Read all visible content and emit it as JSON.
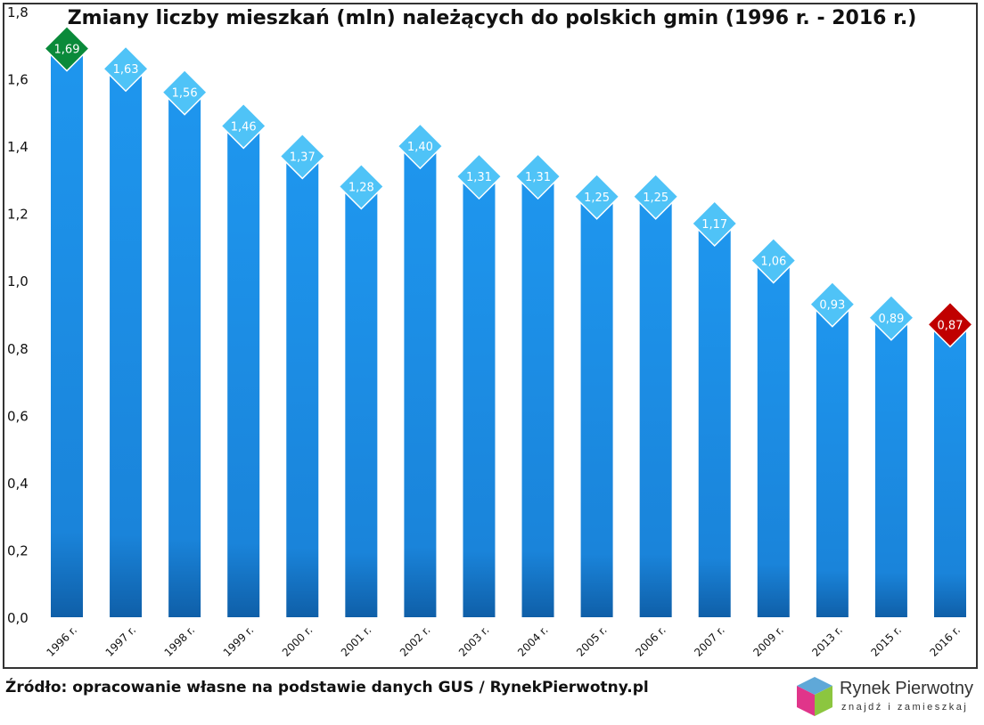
{
  "chart_data": {
    "type": "bar",
    "title": "Zmiany liczby mieszkań (mln) należących do polskich gmin (1996 r. - 2016 r.)",
    "categories": [
      "1996 r.",
      "1997 r.",
      "1998 r.",
      "1999 r.",
      "2000 r.",
      "2001 r.",
      "2002 r.",
      "2003 r.",
      "2004 r.",
      "2005 r.",
      "2006 r.",
      "2007 r.",
      "2009 r.",
      "2013 r.",
      "2015 r.",
      "2016 r."
    ],
    "values": [
      1.69,
      1.63,
      1.56,
      1.46,
      1.37,
      1.28,
      1.4,
      1.31,
      1.31,
      1.25,
      1.25,
      1.17,
      1.06,
      0.93,
      0.89,
      0.87
    ],
    "data_labels": [
      "1,69",
      "1,63",
      "1,56",
      "1,46",
      "1,37",
      "1,28",
      "1,40",
      "1,31",
      "1,31",
      "1,25",
      "1,25",
      "1,17",
      "1,06",
      "0,93",
      "0,89",
      "0,87"
    ],
    "yticks": [
      "0,0",
      "0,2",
      "0,4",
      "0,6",
      "0,8",
      "1,0",
      "1,2",
      "1,4",
      "1,6",
      "1,8"
    ],
    "ylim": [
      0,
      1.8
    ],
    "xlabel": "",
    "ylabel": "",
    "grid": false,
    "colors": {
      "bar": "#1e90e8",
      "label_default": "#4fc3f7",
      "label_max": "#0a8a3a",
      "label_min": "#c00000"
    }
  },
  "source": "Źródło: opracowanie własne na podstawie danych GUS / RynekPierwotny.pl",
  "logo": {
    "name": "Rynek Pierwotny",
    "tagline": "znajdź i zamieszkaj"
  }
}
